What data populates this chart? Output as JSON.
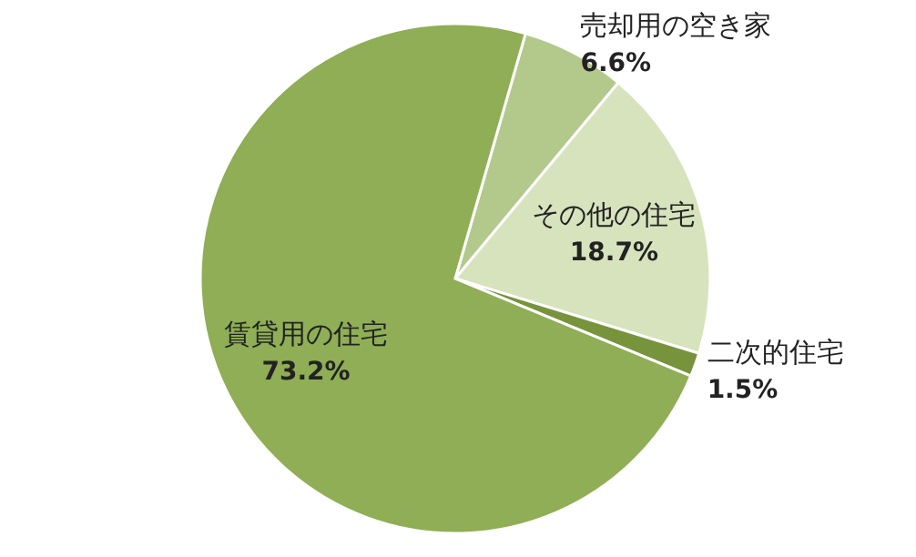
{
  "chart_data": {
    "type": "pie",
    "categories": [
      "売却用の空き家",
      "その他の住宅",
      "二次的住宅",
      "賃貸用の住宅"
    ],
    "values": [
      6.6,
      18.7,
      1.5,
      73.2
    ],
    "colors": [
      "#b3c98b",
      "#d7e3bc",
      "#77933c",
      "#8fae55"
    ],
    "value_labels": [
      "6.6%",
      "18.7%",
      "1.5%",
      "73.2%"
    ]
  }
}
